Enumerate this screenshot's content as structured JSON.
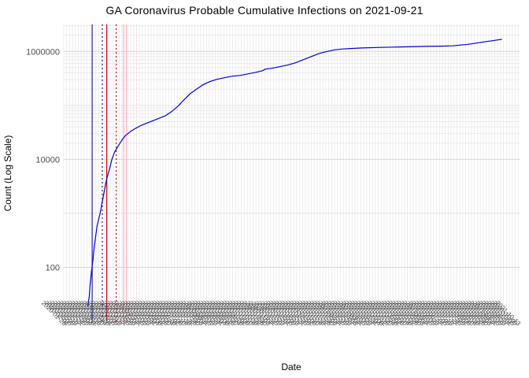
{
  "header": {
    "title": "GA Coronavirus Probable Cumulative Infections on 2021-09-21"
  },
  "chart_data": {
    "type": "line",
    "title": "GA Coronavirus Probable Cumulative Infections on 2021-09-21",
    "xlabel": "Date",
    "ylabel": "Count (Log Scale)",
    "y_scale": "log10",
    "ylim": [
      10,
      3162277
    ],
    "y_ticks": [
      {
        "value": 100,
        "label": "100"
      },
      {
        "value": 10000,
        "label": "10000"
      },
      {
        "value": 1000000,
        "label": "1000000"
      }
    ],
    "x_axis": {
      "start": "2020-01-28",
      "end": "2021-10-15",
      "tick_step_days": 4,
      "label_format": "YYYY-MM-DD",
      "labels_rotated_deg": 45,
      "labels_overlap": true
    },
    "grid": {
      "vertical_per_tick": true,
      "horizontal_decades": true,
      "horizontal_log_minor_above": 10000
    },
    "legend": "none",
    "series": [
      {
        "name": "probable-cumulative-infections",
        "color": "#0000cd",
        "points": [
          [
            "2020-03-01",
            19
          ],
          [
            "2020-03-03",
            29
          ],
          [
            "2020-03-04",
            45
          ],
          [
            "2020-03-06",
            80
          ],
          [
            "2020-03-08",
            133
          ],
          [
            "2020-03-10",
            244
          ],
          [
            "2020-03-12",
            390
          ],
          [
            "2020-03-14",
            604
          ],
          [
            "2020-03-18",
            1000
          ],
          [
            "2020-03-21",
            1660
          ],
          [
            "2020-03-24",
            2740
          ],
          [
            "2020-03-27",
            4390
          ],
          [
            "2020-03-31",
            6790
          ],
          [
            "2020-04-03",
            9840
          ],
          [
            "2020-04-07",
            13800
          ],
          [
            "2020-04-12",
            18000
          ],
          [
            "2020-04-17",
            22800
          ],
          [
            "2020-04-22",
            27900
          ],
          [
            "2020-04-29",
            33000
          ],
          [
            "2020-05-06",
            37800
          ],
          [
            "2020-05-14",
            43100
          ],
          [
            "2020-05-25",
            49300
          ],
          [
            "2020-06-05",
            56400
          ],
          [
            "2020-06-16",
            64600
          ],
          [
            "2020-06-24",
            76400
          ],
          [
            "2020-07-03",
            96700
          ],
          [
            "2020-07-11",
            126000
          ],
          [
            "2020-07-20",
            166000
          ],
          [
            "2020-07-29",
            203000
          ],
          [
            "2020-08-06",
            240000
          ],
          [
            "2020-08-15",
            274000
          ],
          [
            "2020-08-25",
            303000
          ],
          [
            "2020-09-04",
            324000
          ],
          [
            "2020-09-15",
            347000
          ],
          [
            "2020-09-26",
            359000
          ],
          [
            "2020-10-07",
            384000
          ],
          [
            "2020-10-18",
            410000
          ],
          [
            "2020-10-27",
            439000
          ],
          [
            "2020-10-31",
            470000
          ],
          [
            "2020-11-08",
            486000
          ],
          [
            "2020-11-19",
            519000
          ],
          [
            "2020-11-30",
            556000
          ],
          [
            "2020-12-11",
            614000
          ],
          [
            "2020-12-22",
            702000
          ],
          [
            "2021-01-02",
            804000
          ],
          [
            "2021-01-13",
            920000
          ],
          [
            "2021-01-24",
            1000000
          ],
          [
            "2021-02-03",
            1070000
          ],
          [
            "2021-02-14",
            1110000
          ],
          [
            "2021-02-25",
            1130000
          ],
          [
            "2021-03-13",
            1160000
          ],
          [
            "2021-04-03",
            1180000
          ],
          [
            "2021-04-25",
            1200000
          ],
          [
            "2021-05-17",
            1220000
          ],
          [
            "2021-06-07",
            1240000
          ],
          [
            "2021-06-29",
            1250000
          ],
          [
            "2021-07-15",
            1270000
          ],
          [
            "2021-07-26",
            1310000
          ],
          [
            "2021-08-05",
            1350000
          ],
          [
            "2021-08-16",
            1420000
          ],
          [
            "2021-08-27",
            1500000
          ],
          [
            "2021-09-07",
            1570000
          ],
          [
            "2021-09-15",
            1630000
          ],
          [
            "2021-09-21",
            1680000
          ]
        ]
      }
    ],
    "event_lines": [
      {
        "date": "2020-03-07",
        "color": "#2222bb",
        "style": "solid"
      },
      {
        "date": "2020-03-21",
        "color": "#2222bb",
        "style": "dotted"
      },
      {
        "date": "2020-03-27",
        "color": "#dd0000",
        "style": "solid"
      },
      {
        "date": "2020-04-09",
        "color": "#dd0000",
        "style": "dotted"
      },
      {
        "date": "2020-04-19",
        "color": "#ffb6c1",
        "style": "solid"
      },
      {
        "date": "2020-04-23",
        "color": "#ffb6c1",
        "style": "solid"
      },
      {
        "date": "2020-05-07",
        "color": "#ffd0d8",
        "style": "dotted"
      }
    ],
    "colors": {
      "line": "#0000cd",
      "grid_major": "#d7d7d7",
      "grid_decade": "#e3e3e3",
      "grid_minor": "#ebebeb",
      "grid_vertical": "#e7e7e7",
      "tick_label": "#4d4d4d",
      "axis_title": "#000000",
      "title": "#000000",
      "background": "#ffffff"
    }
  }
}
